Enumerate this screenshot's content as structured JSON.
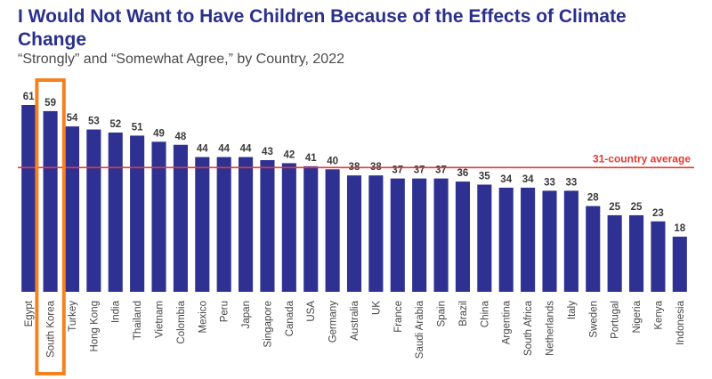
{
  "header": {
    "title": "I Would Not Want to Have Children Because of the Effects of Climate Change",
    "subtitle": "“Strongly” and “Somewhat Agree,” by Country, 2022"
  },
  "colors": {
    "bar": "#2e3192",
    "average_line": "#e53935",
    "highlight": "#f58220"
  },
  "chart_data": {
    "type": "bar",
    "title": "I Would Not Want to Have Children Because of the Effects of Climate Change",
    "subtitle": "“Strongly” and “Somewhat Agree,” by Country, 2022",
    "categories": [
      "Egypt",
      "South Korea",
      "Turkey",
      "Hong Kong",
      "India",
      "Thailand",
      "Vietnam",
      "Colombia",
      "Mexico",
      "Peru",
      "Japan",
      "Singapore",
      "Canada",
      "USA",
      "Germany",
      "Australia",
      "UK",
      "France",
      "Saudi Arabia",
      "Spain",
      "Brazil",
      "China",
      "Argentina",
      "South Africa",
      "Netherlands",
      "Italy",
      "Sweden",
      "Portugal",
      "Nigeria",
      "Kenya",
      "Indonesia"
    ],
    "values": [
      61,
      59,
      54,
      53,
      52,
      51,
      49,
      48,
      44,
      44,
      44,
      43,
      42,
      41,
      40,
      38,
      38,
      37,
      37,
      37,
      36,
      35,
      34,
      34,
      33,
      33,
      28,
      25,
      25,
      23,
      18
    ],
    "ylim": [
      0,
      61
    ],
    "xlabel": "",
    "ylabel": "",
    "reference_line": {
      "label": "31-country average",
      "value": 40
    },
    "highlighted_category": "South Korea"
  }
}
